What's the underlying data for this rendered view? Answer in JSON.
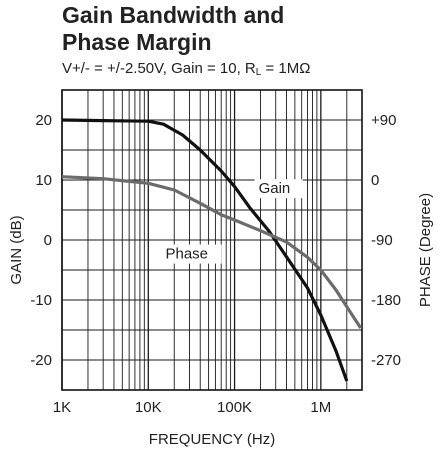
{
  "chart_data": {
    "type": "line",
    "title_line1": "Gain Bandwidth and",
    "title_line2": "Phase Margin",
    "subtitle_pre": "V+/- = +/-2.50V, Gain = 10, R",
    "subtitle_sub": "L",
    "subtitle_post": " = 1MΩ",
    "xlabel": "FREQUENCY (Hz)",
    "ylabel_left": "GAIN (dB)",
    "ylabel_right": "PHASE (Degree)",
    "x_scale": "log",
    "xlim": [
      1000,
      3000000
    ],
    "ylim_left": [
      -25,
      25
    ],
    "ylim_right": [
      -315,
      135
    ],
    "x_ticks": [
      {
        "value": 1000,
        "label": "1K"
      },
      {
        "value": 10000,
        "label": "10K"
      },
      {
        "value": 100000,
        "label": "100K"
      },
      {
        "value": 1000000,
        "label": "1M"
      }
    ],
    "y_ticks_left": [
      {
        "value": 20,
        "label": "20"
      },
      {
        "value": 10,
        "label": "10"
      },
      {
        "value": 0,
        "label": "0"
      },
      {
        "value": -10,
        "label": "-10"
      },
      {
        "value": -20,
        "label": "-20"
      }
    ],
    "y_ticks_right": [
      {
        "value": 90,
        "label": "+90"
      },
      {
        "value": 0,
        "label": "0"
      },
      {
        "value": -90,
        "label": "-90"
      },
      {
        "value": -180,
        "label": "-180"
      },
      {
        "value": -270,
        "label": "-270"
      }
    ],
    "grid": true,
    "series": [
      {
        "name": "Gain",
        "axis": "left",
        "color": "#111111",
        "x": [
          1000,
          3000,
          10000,
          15000,
          25000,
          40000,
          70000,
          100000,
          150000,
          250000,
          400000,
          700000,
          1000000,
          1500000,
          2000000
        ],
        "y": [
          20,
          19.9,
          19.8,
          19.3,
          17.5,
          15,
          11.5,
          8.9,
          5.4,
          1.5,
          -2.8,
          -8,
          -12.5,
          -18.5,
          -23.5
        ]
      },
      {
        "name": "Phase",
        "axis": "right",
        "color": "#6b6b6b",
        "x": [
          1000,
          3000,
          10000,
          20000,
          40000,
          70000,
          100000,
          200000,
          400000,
          700000,
          1000000,
          1500000,
          2000000,
          2900000
        ],
        "y": [
          5,
          2,
          -5,
          -15,
          -35,
          -52,
          -60,
          -76,
          -93,
          -116,
          -135,
          -165,
          -190,
          -222
        ]
      }
    ],
    "annotations": [
      {
        "text": "Gain"
      },
      {
        "text": "Phase"
      }
    ]
  }
}
